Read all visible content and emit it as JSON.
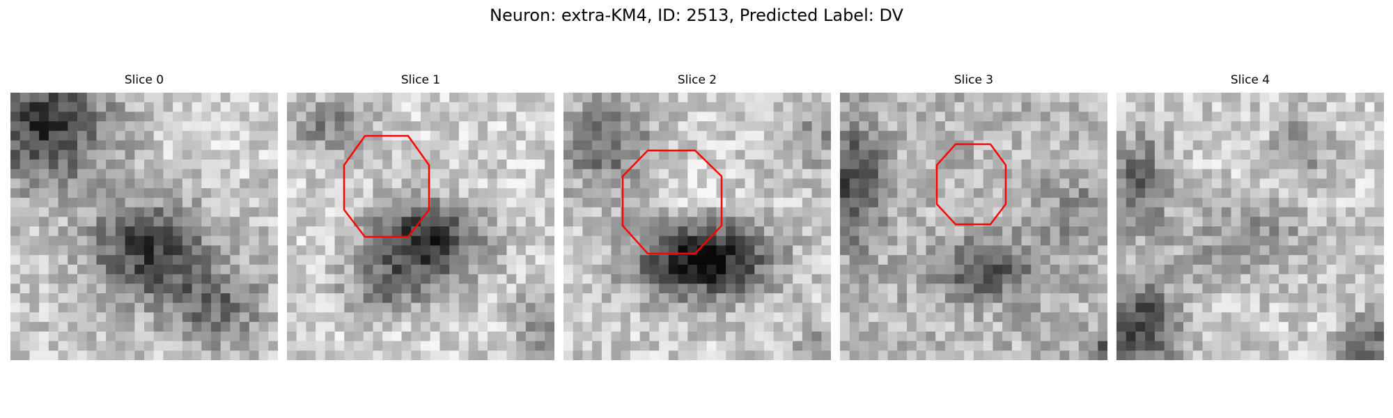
{
  "title": "Neuron: extra-KM4, ID: 2513, Predicted Label: DV",
  "overlay_color": "#ff0000",
  "panels": [
    {
      "label": "Slice 0",
      "roi": false
    },
    {
      "label": "Slice 1",
      "roi": true
    },
    {
      "label": "Slice 2",
      "roi": true
    },
    {
      "label": "Slice 3",
      "roi": true
    },
    {
      "label": "Slice 4",
      "roi": false
    }
  ]
}
